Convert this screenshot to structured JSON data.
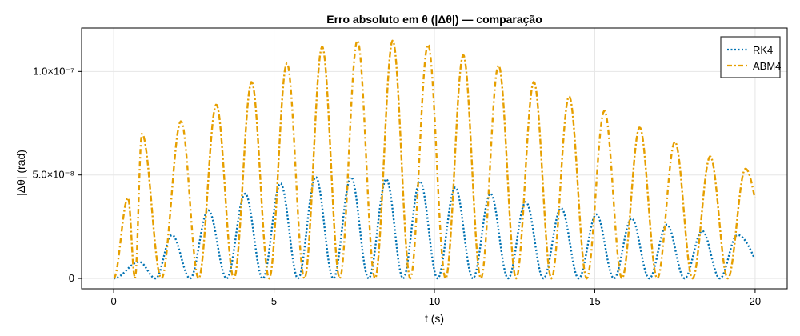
{
  "chart_data": {
    "type": "line",
    "title": "Erro absoluto em θ (|Δθ|) — comparação",
    "xlabel": "t (s)",
    "ylabel": "|Δθ| (rad)",
    "xlim": [
      -1,
      21
    ],
    "ylim": [
      -5e-09,
      1.21e-07
    ],
    "x_ticks": [
      0,
      5,
      10,
      15,
      20
    ],
    "x_tick_labels": [
      "0",
      "5",
      "10",
      "15",
      "20"
    ],
    "y_ticks": [
      0,
      5e-08,
      1e-07
    ],
    "y_tick_labels": [
      "0",
      "5.0×10⁻⁸",
      "1.0×10⁻⁷"
    ],
    "grid": true,
    "legend_position": "top-right",
    "series": [
      {
        "name": "RK4",
        "color": "#0072b2",
        "style": "dotted",
        "period": 1.09,
        "peaks": [
          [
            0.8,
            8e-09
          ],
          [
            1.82,
            2.1e-08
          ],
          [
            2.95,
            3.3e-08
          ],
          [
            4.1,
            4.1e-08
          ],
          [
            5.2,
            4.6e-08
          ],
          [
            6.3,
            4.9e-08
          ],
          [
            7.4,
            4.9e-08
          ],
          [
            8.5,
            4.8e-08
          ],
          [
            9.55,
            4.7e-08
          ],
          [
            10.65,
            4.4e-08
          ],
          [
            11.75,
            4.1e-08
          ],
          [
            12.85,
            3.7e-08
          ],
          [
            13.95,
            3.4e-08
          ],
          [
            15.05,
            3.1e-08
          ],
          [
            16.15,
            2.9e-08
          ],
          [
            17.25,
            2.6e-08
          ],
          [
            18.35,
            2.3e-08
          ],
          [
            19.45,
            2.1e-08
          ]
        ],
        "end": [
          20.0,
          9e-09
        ]
      },
      {
        "name": "ABM4",
        "color": "#e69f00",
        "style": "dashdot",
        "period": 1.09,
        "peaks": [
          [
            0.45,
            3.9e-08
          ],
          [
            0.88,
            7e-08
          ],
          [
            2.1,
            7.6e-08
          ],
          [
            3.2,
            8.4e-08
          ],
          [
            4.3,
            9.5e-08
          ],
          [
            5.4,
            1.04e-07
          ],
          [
            6.5,
            1.12e-07
          ],
          [
            7.6,
            1.15e-07
          ],
          [
            8.7,
            1.15e-07
          ],
          [
            9.8,
            1.13e-07
          ],
          [
            10.9,
            1.08e-07
          ],
          [
            12.0,
            1.03e-07
          ],
          [
            13.1,
            9.5e-08
          ],
          [
            14.2,
            8.8e-08
          ],
          [
            15.3,
            8.1e-08
          ],
          [
            16.4,
            7.3e-08
          ],
          [
            17.5,
            6.6e-08
          ],
          [
            18.6,
            5.9e-08
          ],
          [
            19.7,
            5.3e-08
          ]
        ],
        "end": [
          20.0,
          3.8e-08
        ]
      }
    ]
  }
}
